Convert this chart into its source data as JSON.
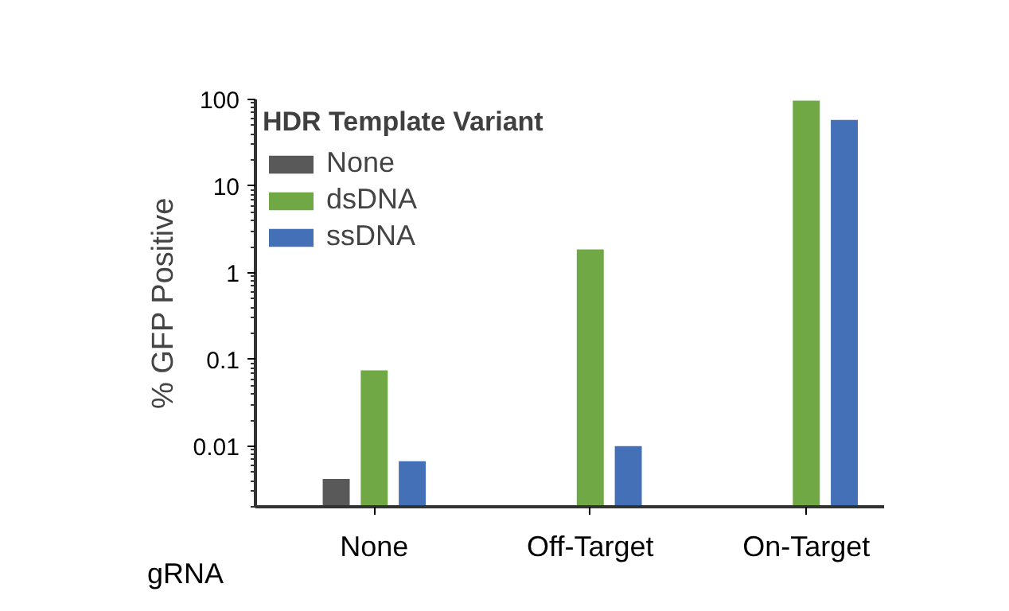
{
  "chart_data": {
    "type": "bar",
    "xlabel": "gRNA",
    "ylabel": "% GFP Positive",
    "legend_title": "HDR Template Variant",
    "categories": [
      "None",
      "Off-Target",
      "On-Target"
    ],
    "series": [
      {
        "name": "None",
        "color": "#595959",
        "values": [
          0.0042,
          null,
          null
        ]
      },
      {
        "name": "dsDNA",
        "color": "#70a846",
        "values": [
          0.075,
          1.86,
          97
        ]
      },
      {
        "name": "ssDNA",
        "color": "#4470b8",
        "values": [
          0.0067,
          0.01,
          58
        ]
      }
    ],
    "log": "y",
    "ylim": [
      0.002,
      100
    ],
    "yticks": [
      {
        "value": 0.01,
        "label": "0.01"
      },
      {
        "value": 0.1,
        "label": "0.1"
      },
      1,
      10,
      100
    ],
    "grid": false,
    "legend": "top left"
  }
}
